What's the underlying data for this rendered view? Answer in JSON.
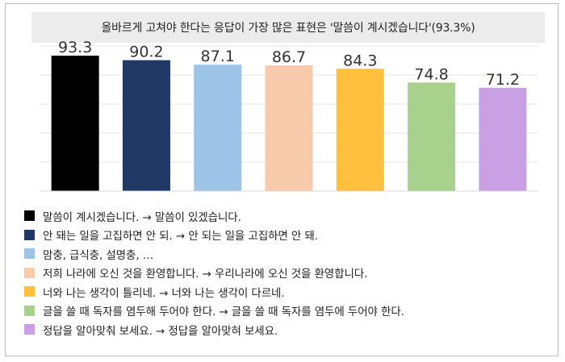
{
  "title": "올바르게 고쳐야 한다는 응답이 가장 많은 표현은 '말씀이 계시겠습니다'(93.3%)",
  "chart_data": {
    "type": "bar",
    "title": "올바르게 고쳐야 한다는 응답이 가장 많은 표현은 '말씀이 계시겠습니다'(93.3%)",
    "categories": [
      "말씀이 계시겠습니다. → 말씀이 있겠습니다.",
      "안 돼는 일을 고집하면 안 되. → 안 되는 일을 고집하면 안 돼.",
      "맘충, 급식충, 설명충, …",
      "저희 나라에 오신 것을 환영합니다. → 우리나라에 오신 것을 환영합니다.",
      "너와 나는 생각이 틀리네. → 너와 나는 생각이 다르네.",
      "글을 쓸 때 독자를 염두해 두어야 한다. → 글을 쓸 때 독자를 염두에 두어야 한다.",
      "정답을 알아맞춰 보세요. → 정답을 알아맞혀 보세요."
    ],
    "values": [
      93.3,
      90.2,
      87.1,
      86.7,
      84.3,
      74.8,
      71.2
    ],
    "colors": [
      "#000000",
      "#1f3864",
      "#9dc3e6",
      "#f8cbad",
      "#ffc03d",
      "#a9d18e",
      "#c9a0e4"
    ],
    "ylim": [
      0,
      100
    ],
    "grid": true,
    "legend_position": "bottom",
    "xlabel": "",
    "ylabel": ""
  }
}
